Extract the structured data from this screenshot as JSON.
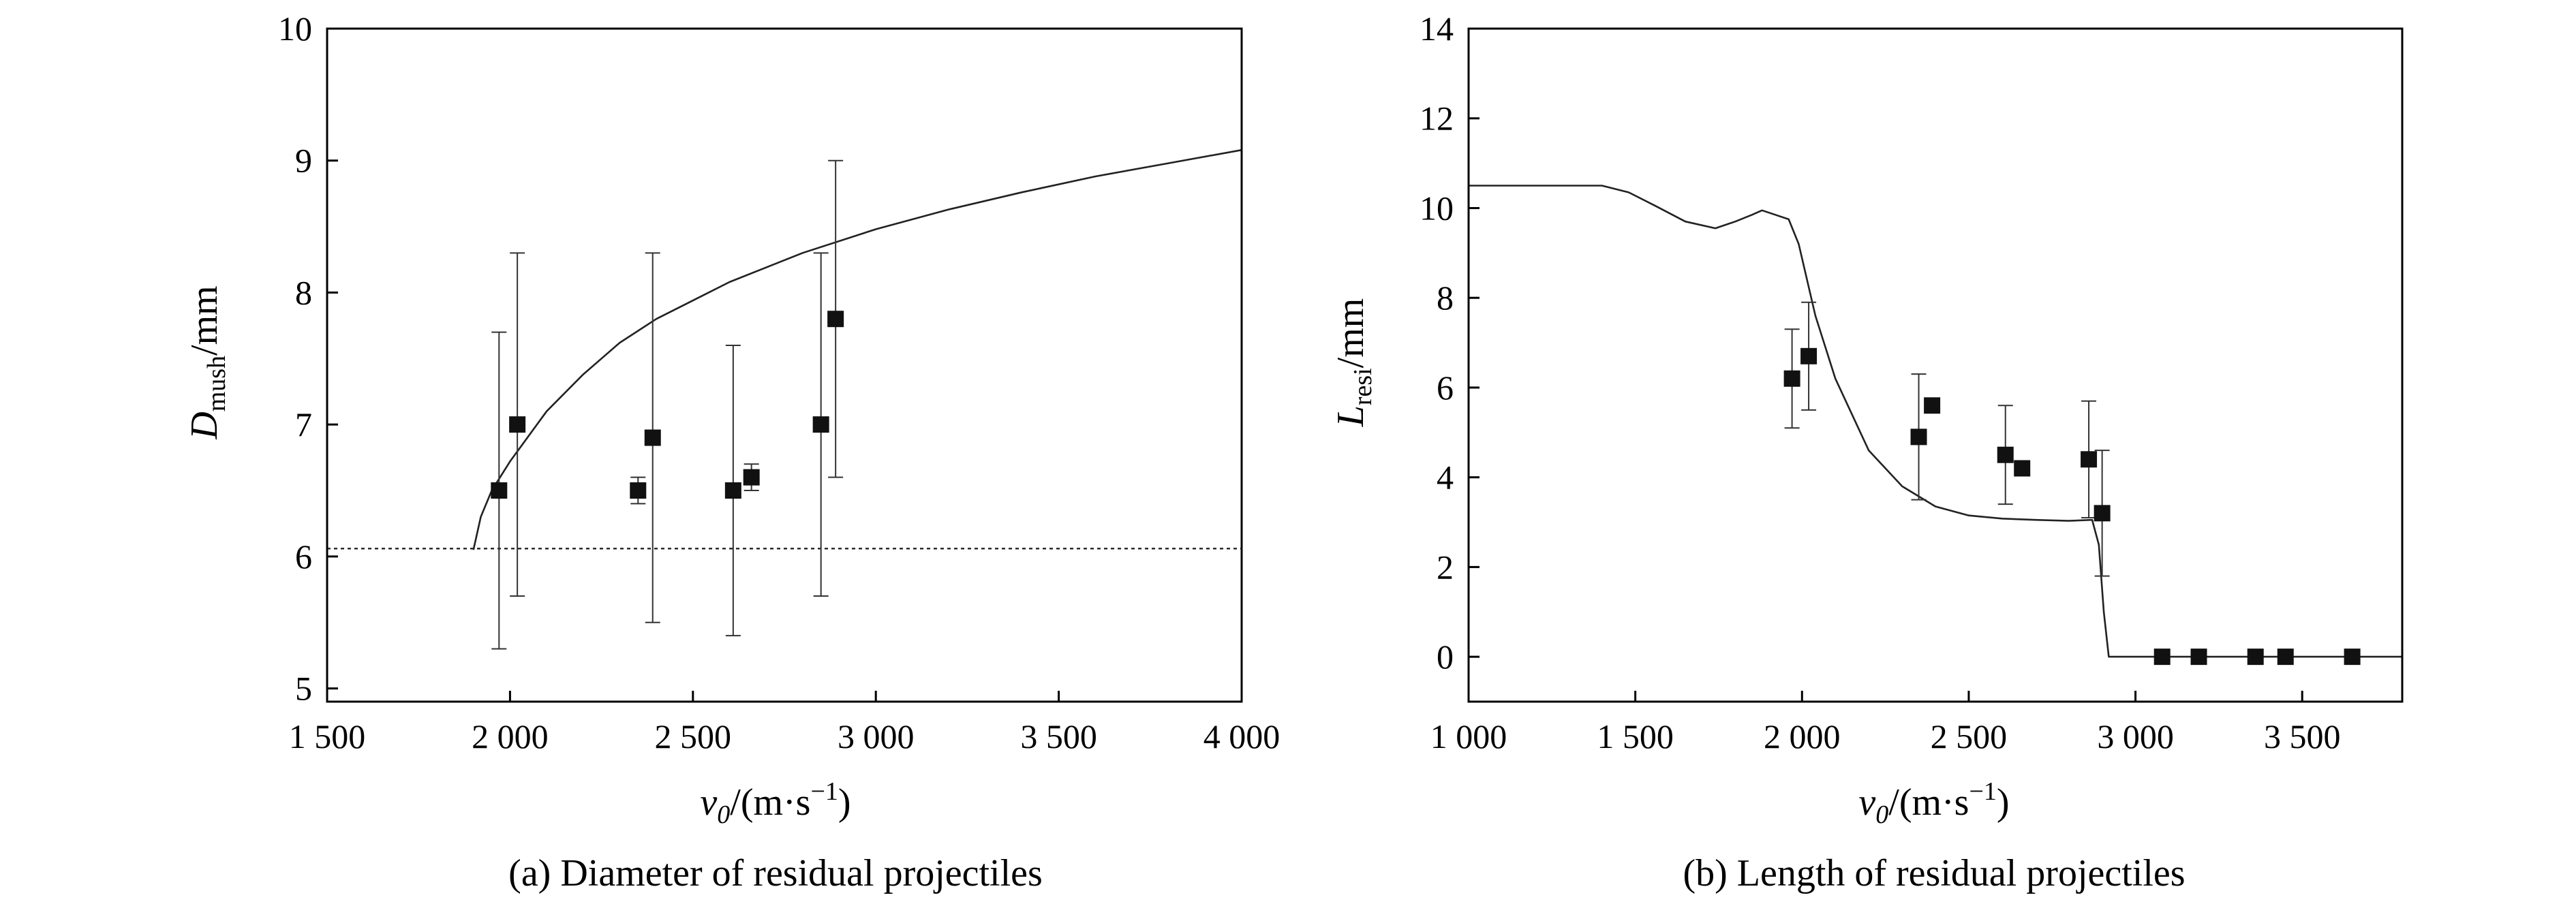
{
  "chart_data": [
    {
      "type": "scatter",
      "panel": "a",
      "caption": "(a) Diameter of residual projectiles",
      "xlabel": "v0/(m·s−1)",
      "xlabel_parts": {
        "symbol": "v",
        "sub": "0",
        "unit_pre": "/(m·s",
        "unit_sup": "−1",
        "unit_post": ")"
      },
      "ylabel": "Dmush/mm",
      "ylabel_parts": {
        "symbol": "D",
        "sub": "mush",
        "unit": "/mm"
      },
      "xlim": [
        1500,
        4000
      ],
      "ylim": [
        4.9,
        10
      ],
      "xticks": [
        1500,
        2000,
        2500,
        3000,
        3500,
        4000
      ],
      "xtick_labels": [
        "1 500",
        "2 000",
        "2 500",
        "3 000",
        "3 500",
        "4 000"
      ],
      "yticks": [
        5,
        6,
        7,
        8,
        9,
        10
      ],
      "ytick_labels": [
        "5",
        "6",
        "7",
        "8",
        "9",
        "10"
      ],
      "grid": false,
      "points": [
        {
          "x": 1970,
          "y": 6.5,
          "lo": 5.3,
          "hi": 7.7
        },
        {
          "x": 2020,
          "y": 7.0,
          "lo": 5.7,
          "hi": 8.3
        },
        {
          "x": 2350,
          "y": 6.5,
          "lo": 6.4,
          "hi": 6.6
        },
        {
          "x": 2390,
          "y": 6.9,
          "lo": 5.5,
          "hi": 8.3
        },
        {
          "x": 2610,
          "y": 6.5,
          "lo": 5.4,
          "hi": 7.6
        },
        {
          "x": 2660,
          "y": 6.6,
          "lo": 6.5,
          "hi": 6.7
        },
        {
          "x": 2850,
          "y": 7.0,
          "lo": 5.7,
          "hi": 8.3
        },
        {
          "x": 2890,
          "y": 7.8,
          "lo": 6.6,
          "hi": 9.0
        }
      ],
      "curve": {
        "x": [
          1900,
          1920,
          1950,
          2000,
          2100,
          2200,
          2300,
          2400,
          2600,
          2800,
          3000,
          3200,
          3400,
          3600,
          3800,
          4000
        ],
        "y": [
          6.05,
          6.3,
          6.5,
          6.72,
          7.1,
          7.38,
          7.62,
          7.8,
          8.08,
          8.3,
          8.48,
          8.63,
          8.76,
          8.88,
          8.98,
          9.08
        ]
      },
      "reference_line": {
        "y": 6.06
      },
      "colors": {
        "marker": "#111111",
        "line": "#222222"
      }
    },
    {
      "type": "scatter",
      "panel": "b",
      "caption": "(b) Length of residual projectiles",
      "xlabel": "v0/(m·s−1)",
      "xlabel_parts": {
        "symbol": "v",
        "sub": "0",
        "unit_pre": "/(m·s",
        "unit_sup": "−1",
        "unit_post": ")"
      },
      "ylabel": "Lresi/mm",
      "ylabel_parts": {
        "symbol": "L",
        "sub": "resi",
        "unit": "/mm"
      },
      "xlim": [
        1000,
        3800
      ],
      "ylim": [
        -1,
        14
      ],
      "xticks": [
        1000,
        1500,
        2000,
        2500,
        3000,
        3500
      ],
      "xtick_labels": [
        "1 000",
        "1 500",
        "2 000",
        "2 500",
        "3 000",
        "3 500"
      ],
      "yticks": [
        0,
        2,
        4,
        6,
        8,
        10,
        12,
        14
      ],
      "ytick_labels": [
        "0",
        "2",
        "4",
        "6",
        "8",
        "10",
        "12",
        "14"
      ],
      "grid": false,
      "points": [
        {
          "x": 1970,
          "y": 6.2,
          "lo": 5.1,
          "hi": 7.3
        },
        {
          "x": 2020,
          "y": 6.7,
          "lo": 5.5,
          "hi": 7.9
        },
        {
          "x": 2350,
          "y": 4.9,
          "lo": 3.5,
          "hi": 6.3
        },
        {
          "x": 2390,
          "y": 5.6
        },
        {
          "x": 2610,
          "y": 4.5,
          "lo": 3.4,
          "hi": 5.6
        },
        {
          "x": 2660,
          "y": 4.2
        },
        {
          "x": 2860,
          "y": 4.4,
          "lo": 3.1,
          "hi": 5.7
        },
        {
          "x": 2900,
          "y": 3.2,
          "lo": 1.8,
          "hi": 4.6
        },
        {
          "x": 3080,
          "y": 0
        },
        {
          "x": 3190,
          "y": 0
        },
        {
          "x": 3360,
          "y": 0
        },
        {
          "x": 3450,
          "y": 0
        },
        {
          "x": 3650,
          "y": 0
        }
      ],
      "curve": {
        "x": [
          1000,
          1300,
          1400,
          1480,
          1560,
          1650,
          1740,
          1800,
          1850,
          1880,
          1920,
          1960,
          1990,
          2040,
          2100,
          2200,
          2300,
          2400,
          2500,
          2600,
          2700,
          2800,
          2870,
          2890,
          2905,
          2920,
          3800
        ],
        "y": [
          10.5,
          10.5,
          10.5,
          10.35,
          10.05,
          9.7,
          9.55,
          9.7,
          9.85,
          9.95,
          9.85,
          9.75,
          9.2,
          7.6,
          6.2,
          4.6,
          3.8,
          3.35,
          3.15,
          3.08,
          3.05,
          3.03,
          3.05,
          2.5,
          1.0,
          0,
          0
        ]
      },
      "colors": {
        "marker": "#111111",
        "line": "#222222"
      }
    }
  ]
}
